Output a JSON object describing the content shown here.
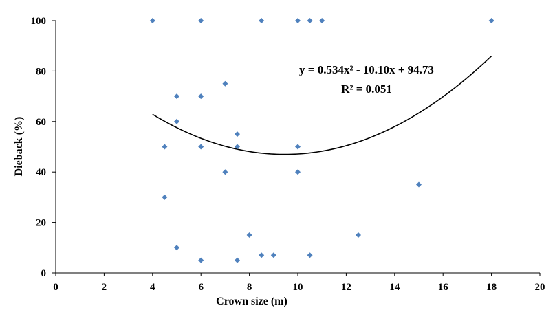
{
  "chart_data": {
    "type": "scatter",
    "title": "",
    "xlabel": "Crown size (m)",
    "ylabel": "Dieback (%)",
    "xlim": [
      0,
      20
    ],
    "ylim": [
      0,
      100
    ],
    "xticks": [
      0,
      2,
      4,
      6,
      8,
      10,
      12,
      14,
      16,
      18,
      20
    ],
    "yticks": [
      0,
      20,
      40,
      60,
      80,
      100
    ],
    "grid": false,
    "legend": "none",
    "marker": "diamond",
    "marker_color": "#4f81bd",
    "points": [
      {
        "x": 4,
        "y": 100
      },
      {
        "x": 6,
        "y": 100
      },
      {
        "x": 8.5,
        "y": 100
      },
      {
        "x": 10,
        "y": 100
      },
      {
        "x": 10.5,
        "y": 100
      },
      {
        "x": 11,
        "y": 100
      },
      {
        "x": 18,
        "y": 100
      },
      {
        "x": 7,
        "y": 75
      },
      {
        "x": 5,
        "y": 70
      },
      {
        "x": 6,
        "y": 70
      },
      {
        "x": 5,
        "y": 60
      },
      {
        "x": 7.5,
        "y": 55
      },
      {
        "x": 4.5,
        "y": 50
      },
      {
        "x": 6,
        "y": 50
      },
      {
        "x": 7.5,
        "y": 50
      },
      {
        "x": 10,
        "y": 50
      },
      {
        "x": 7,
        "y": 40
      },
      {
        "x": 10,
        "y": 40
      },
      {
        "x": 15,
        "y": 35
      },
      {
        "x": 4.5,
        "y": 30
      },
      {
        "x": 8,
        "y": 15
      },
      {
        "x": 12.5,
        "y": 15
      },
      {
        "x": 5,
        "y": 10
      },
      {
        "x": 8.5,
        "y": 7
      },
      {
        "x": 9,
        "y": 7
      },
      {
        "x": 10.5,
        "y": 7
      },
      {
        "x": 6,
        "y": 5
      },
      {
        "x": 7.5,
        "y": 5
      }
    ],
    "trendline": {
      "type": "polynomial",
      "coefficients": [
        0.534,
        -10.1,
        94.73
      ],
      "x_range": [
        4,
        18
      ],
      "color": "#000000",
      "equation": "y = 0.534x² - 10.10x + 94.73",
      "r_squared": "R² = 0.051"
    }
  }
}
